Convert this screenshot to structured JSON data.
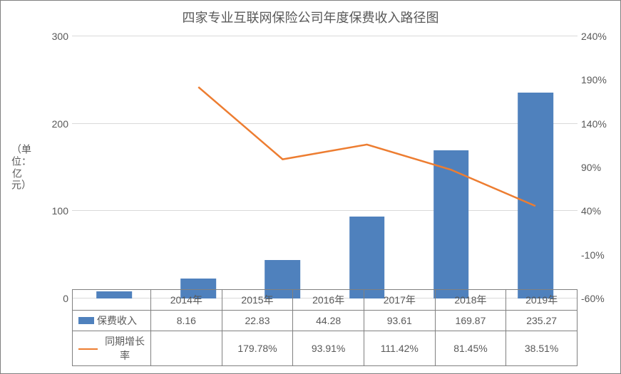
{
  "chart": {
    "type": "bar+line",
    "title": "四家专业互联网保险公司年度保费收入路径图",
    "title_fontsize": 18,
    "title_color": "#595959",
    "background_color": "#ffffff",
    "border_color": "#808080",
    "grid_color": "#d9d9d9",
    "text_color": "#595959",
    "label_fontsize": 14,
    "y_left": {
      "title": "（单位：亿元）",
      "min": 0,
      "max": 300,
      "step": 100,
      "ticks": [
        0,
        100,
        200,
        300
      ]
    },
    "y_right": {
      "min": -60,
      "max": 240,
      "step": 50,
      "ticks": [
        "-60%",
        "-10%",
        "40%",
        "90%",
        "140%",
        "190%",
        "240%"
      ],
      "tick_values": [
        -60,
        -10,
        40,
        90,
        140,
        190,
        240
      ]
    },
    "categories": [
      "2014年",
      "2015年",
      "2016年",
      "2017年",
      "2018年",
      "2019年"
    ],
    "series_bar": {
      "name": "保费收入",
      "color": "#4f81bd",
      "bar_width": 0.42,
      "values": [
        8.16,
        22.83,
        44.28,
        93.61,
        169.87,
        235.27
      ],
      "display": [
        "8.16",
        "22.83",
        "44.28",
        "93.61",
        "169.87",
        "235.27"
      ]
    },
    "series_line": {
      "name": "同期增长率",
      "color": "#ed7d31",
      "line_width": 2.5,
      "values": [
        null,
        179.78,
        93.91,
        111.42,
        81.45,
        38.51
      ],
      "display": [
        "",
        "179.78%",
        "93.91%",
        "111.42%",
        "81.45%",
        "38.51%"
      ]
    }
  }
}
